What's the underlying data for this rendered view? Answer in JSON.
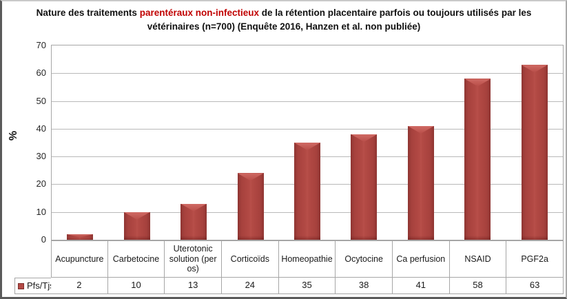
{
  "title": {
    "part1": "Nature des traitements ",
    "highlight": "parentéraux non-infectieux",
    "part2": " de la rétention placentaire parfois ou toujours utilisés par les vétérinaires (n=700) (Enquête 2016, Hanzen et al. non publiée)"
  },
  "chart_data": {
    "type": "bar",
    "title": "Nature des traitements parentéraux non-infectieux de la rétention placentaire parfois ou toujours utilisés par les vétérinaires (n=700) (Enquête 2016, Hanzen et al. non publiée)",
    "categories": [
      "Acupuncture",
      "Carbetocine",
      "Uterotonic solution (per os)",
      "Corticoïds",
      "Homeopathie",
      "Ocytocine",
      "Ca perfusion",
      "NSAID",
      "PGF2a"
    ],
    "series": [
      {
        "name": "Pfs/Tjs",
        "values": [
          2,
          10,
          13,
          24,
          35,
          38,
          41,
          58,
          63
        ]
      }
    ],
    "xlabel": "",
    "ylabel": "%",
    "ylim": [
      0,
      70
    ],
    "yticks": [
      0,
      10,
      20,
      30,
      40,
      50,
      60,
      70
    ],
    "grid": true,
    "legend_position": "bottom-table-left"
  },
  "colors": {
    "title_highlight": "#c00000",
    "bar_main": "#b34a45",
    "bar_edge": "#8e3532",
    "bar_highlight": "#d06a64",
    "gridline": "#b9b9b9",
    "table_border": "#a6a6a6"
  }
}
